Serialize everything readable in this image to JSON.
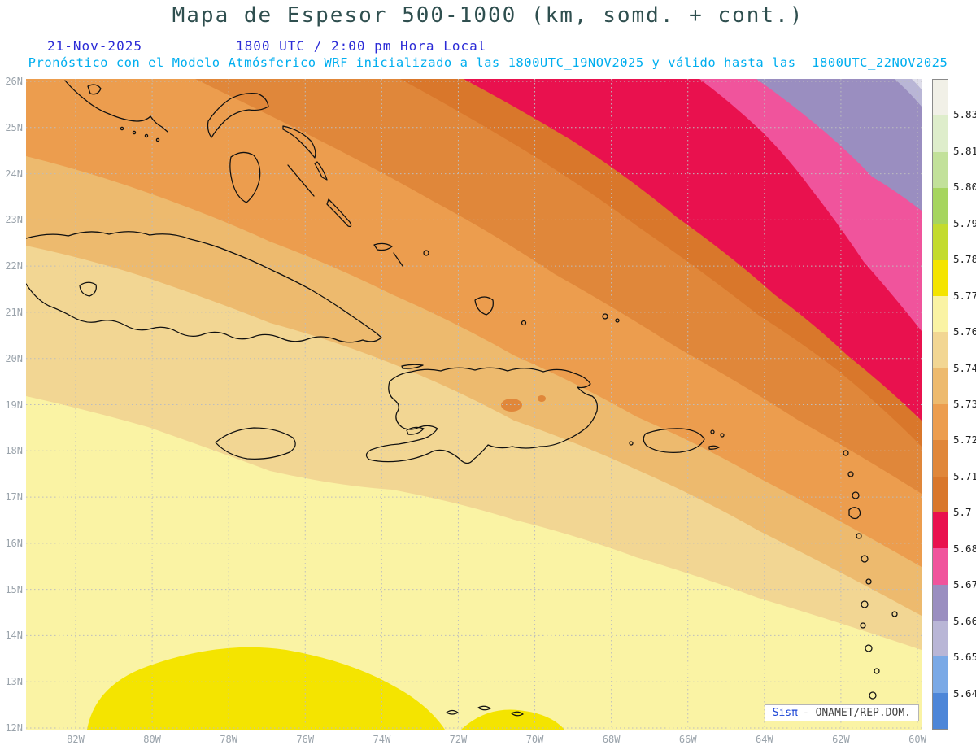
{
  "header": {
    "title": "Mapa de Espesor 500-1000 (km, somd. + cont.)",
    "date": "21-Nov-2025",
    "time": "1800 UTC / 2:00 pm Hora Local",
    "forecast": "Pronóstico con el Modelo Atmósferico WRF inicializado a las 1800UTC_19NOV2025 y válido hasta las  1800UTC_22NOV2025"
  },
  "theme": {
    "title_color": "#2F4F4F",
    "datetime_color": "#2B2BD6",
    "forecast_color": "#00AEEF",
    "axis_color": "#9AA3AB",
    "grid_color": "#BDBDBD"
  },
  "axes": {
    "lat_labels": [
      "26N",
      "25N",
      "24N",
      "23N",
      "22N",
      "21N",
      "20N",
      "19N",
      "18N",
      "17N",
      "16N",
      "15N",
      "14N",
      "13N",
      "12N"
    ],
    "lon_labels": [
      "82W",
      "80W",
      "78W",
      "76W",
      "74W",
      "72W",
      "70W",
      "68W",
      "66W",
      "64W",
      "62W",
      "60W"
    ]
  },
  "chart_data": {
    "type": "heatmap",
    "subtype": "filled_contour_weather_map",
    "title": "Mapa de Espesor 500-1000 (km, somd. + cont.)",
    "variable": "Espesor 500-1000",
    "units": "km",
    "model": "WRF",
    "run_init": "1800UTC_19NOV2025",
    "valid_until": "1800UTC_22NOV2025",
    "valid_time": "1800 UTC / 2:00 pm Hora Local",
    "region": {
      "lat_range": [
        "12N",
        "26N"
      ],
      "lon_range": [
        "82W",
        "60W"
      ]
    },
    "grid": "dotted, 1° latitude x 2° longitude",
    "legend_position": "right",
    "legend": {
      "boundary_values": [
        "5.831",
        "5.819",
        "5.807",
        "5.795",
        "5.783",
        "5.772",
        "5.76",
        "5.748",
        "5.736",
        "5.724",
        "5.712",
        "5.7",
        "5.688",
        "5.676",
        "5.664",
        "5.652",
        "5.64"
      ],
      "segment_colors_top_to_bottom": [
        "#F1F0E7",
        "#DEEDCB",
        "#C2E19A",
        "#A6D55F",
        "#C3DB2E",
        "#F4E400",
        "#FAF3A4",
        "#F2D693",
        "#EDBA6E",
        "#EC9D4E",
        "#E0873A",
        "#D9772B",
        "#E9114E",
        "#F0549C",
        "#9A8EC0",
        "#B9B6D6",
        "#7AA9E6",
        "#4D86D8"
      ]
    },
    "field_pattern": "Thickness values decrease toward the northeast: yellow band (~5.772-5.783) along the south near 12-13N, pale yellow (5.76-5.772) over the southwest Caribbean, tan/orange bands (5.70-5.76) over Cuba and Hispaniola, crimson (5.688-5.7), pink (5.676-5.688) and purple (5.664-5.676) bands over the northeast Atlantic corner."
  },
  "branding": {
    "app": "Sisπ",
    "org": "- ONAMET/REP.DOM."
  }
}
